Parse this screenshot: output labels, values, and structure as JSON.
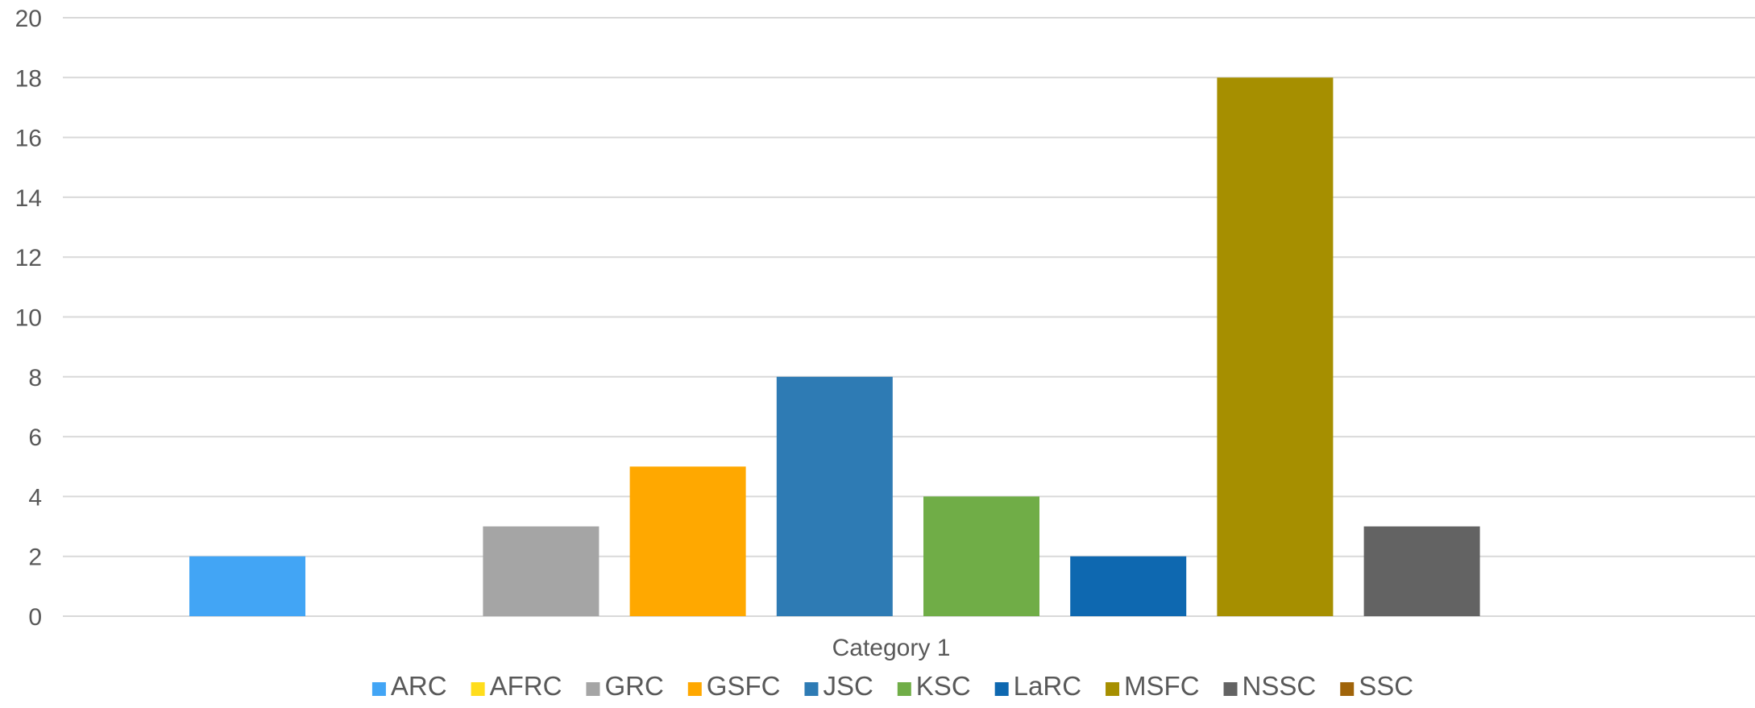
{
  "chart_data": {
    "type": "bar",
    "title": "",
    "xlabel": "",
    "ylabel": "",
    "categories": [
      "Category 1"
    ],
    "ylim": [
      0,
      20
    ],
    "yticks": [
      "0",
      "2",
      "4",
      "6",
      "8",
      "10",
      "12",
      "14",
      "16",
      "18",
      "20"
    ],
    "grid": true,
    "legend_position": "bottom",
    "series": [
      {
        "name": "ARC",
        "values": [
          2
        ],
        "color": "#42A5F5"
      },
      {
        "name": "AFRC",
        "values": [
          0
        ],
        "color": "#FFDD1C"
      },
      {
        "name": "GRC",
        "values": [
          3
        ],
        "color": "#A5A5A5"
      },
      {
        "name": "GSFC",
        "values": [
          5
        ],
        "color": "#FFA800"
      },
      {
        "name": "JSC",
        "values": [
          8
        ],
        "color": "#2E7BB4"
      },
      {
        "name": "KSC",
        "values": [
          4
        ],
        "color": "#70AD47"
      },
      {
        "name": "LaRC",
        "values": [
          2
        ],
        "color": "#0E68B0"
      },
      {
        "name": "MSFC",
        "values": [
          18
        ],
        "color": "#A68F00"
      },
      {
        "name": "NSSC",
        "values": [
          3
        ],
        "color": "#636363"
      },
      {
        "name": "SSC",
        "values": [
          0
        ],
        "color": "#A0640A"
      }
    ]
  }
}
